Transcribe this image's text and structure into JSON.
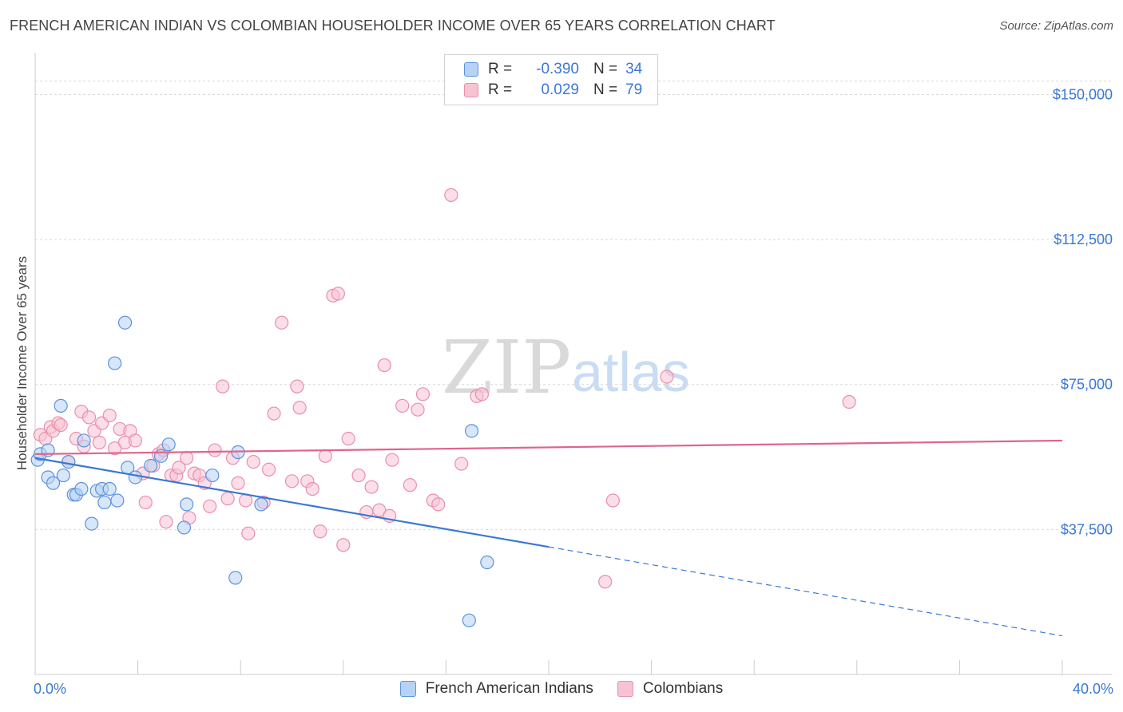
{
  "header": {
    "title": "FRENCH AMERICAN INDIAN VS COLOMBIAN HOUSEHOLDER INCOME OVER 65 YEARS CORRELATION CHART",
    "source": "Source: ZipAtlas.com"
  },
  "stats": {
    "rows": [
      {
        "r_label": "R =",
        "r_value": "-0.390",
        "n_label": "N =",
        "n_value": "34"
      },
      {
        "r_label": "R =",
        "r_value": "0.029",
        "n_label": "N =",
        "n_value": "79"
      }
    ]
  },
  "colors": {
    "blue_fill": "#b7d2f4",
    "blue_stroke": "#5b93dd",
    "blue_line": "#3a78d4",
    "pink_fill": "#f7c3d3",
    "pink_stroke": "#ea8fab",
    "pink_line": "#e0648c",
    "grid": "#d9d9d9",
    "accent_text": "#3a78d4"
  },
  "watermark": {
    "part1": "ZIP",
    "part2": "atlas"
  },
  "chart_data": {
    "type": "scatter",
    "title": "FRENCH AMERICAN INDIAN VS COLOMBIAN HOUSEHOLDER INCOME OVER 65 YEARS CORRELATION CHART",
    "xlabel": "",
    "ylabel": "Householder Income Over 65 years",
    "xlim": [
      0,
      40
    ],
    "ylim": [
      0,
      160000
    ],
    "x_tick_labels": {
      "min": "0.0%",
      "max": "40.0%"
    },
    "y_ticks": [
      {
        "value": 37500,
        "label": "$37,500"
      },
      {
        "value": 75000,
        "label": "$75,000"
      },
      {
        "value": 112500,
        "label": "$112,500"
      },
      {
        "value": 150000,
        "label": "$150,000"
      }
    ],
    "legend_position": "bottom-center",
    "series": [
      {
        "name": "French American Indians",
        "color": "#5b93dd",
        "points": [
          [
            0.1,
            55500
          ],
          [
            0.2,
            57000
          ],
          [
            0.5,
            58000
          ],
          [
            0.5,
            51000
          ],
          [
            0.7,
            49500
          ],
          [
            1.0,
            69500
          ],
          [
            1.1,
            51500
          ],
          [
            1.3,
            55000
          ],
          [
            1.5,
            46500
          ],
          [
            1.6,
            46500
          ],
          [
            1.8,
            48000
          ],
          [
            1.9,
            60500
          ],
          [
            2.2,
            39000
          ],
          [
            2.4,
            47500
          ],
          [
            2.6,
            48000
          ],
          [
            2.7,
            44500
          ],
          [
            2.9,
            48000
          ],
          [
            3.1,
            80500
          ],
          [
            3.2,
            45000
          ],
          [
            3.5,
            91000
          ],
          [
            3.6,
            53500
          ],
          [
            3.9,
            51000
          ],
          [
            4.5,
            54000
          ],
          [
            4.9,
            56500
          ],
          [
            5.2,
            59500
          ],
          [
            5.8,
            38000
          ],
          [
            5.9,
            44000
          ],
          [
            6.9,
            51500
          ],
          [
            7.8,
            25000
          ],
          [
            7.9,
            57500
          ],
          [
            8.8,
            44000
          ],
          [
            17.0,
            63000
          ],
          [
            17.6,
            29000
          ],
          [
            16.9,
            14000
          ]
        ],
        "trend": {
          "x_start": 0,
          "y_start": 56000,
          "x_solid_end": 20,
          "y_solid_end": 33000,
          "x_end": 40,
          "y_end": 10000
        }
      },
      {
        "name": "Colombians",
        "color": "#ea8fab",
        "points": [
          [
            0.2,
            62000
          ],
          [
            0.4,
            61000
          ],
          [
            0.6,
            64000
          ],
          [
            0.7,
            63000
          ],
          [
            0.9,
            65000
          ],
          [
            1.0,
            64500
          ],
          [
            1.3,
            55000
          ],
          [
            1.6,
            61000
          ],
          [
            1.8,
            68000
          ],
          [
            1.9,
            59000
          ],
          [
            2.1,
            66500
          ],
          [
            2.3,
            63000
          ],
          [
            2.5,
            60000
          ],
          [
            2.6,
            65000
          ],
          [
            2.9,
            67000
          ],
          [
            3.1,
            58500
          ],
          [
            3.3,
            63500
          ],
          [
            3.5,
            60000
          ],
          [
            3.7,
            63000
          ],
          [
            3.9,
            60500
          ],
          [
            4.2,
            52000
          ],
          [
            4.3,
            44500
          ],
          [
            4.6,
            54000
          ],
          [
            4.8,
            57000
          ],
          [
            5.0,
            58000
          ],
          [
            5.1,
            39500
          ],
          [
            5.3,
            51500
          ],
          [
            5.5,
            51500
          ],
          [
            5.6,
            53500
          ],
          [
            5.9,
            56000
          ],
          [
            6.0,
            40500
          ],
          [
            6.2,
            52000
          ],
          [
            6.4,
            51500
          ],
          [
            6.6,
            49500
          ],
          [
            6.8,
            43500
          ],
          [
            7.0,
            58000
          ],
          [
            7.3,
            74500
          ],
          [
            7.5,
            45500
          ],
          [
            7.7,
            56000
          ],
          [
            7.9,
            49500
          ],
          [
            8.2,
            45000
          ],
          [
            8.3,
            36500
          ],
          [
            8.5,
            55000
          ],
          [
            8.9,
            44500
          ],
          [
            9.1,
            53000
          ],
          [
            9.3,
            67500
          ],
          [
            9.6,
            91000
          ],
          [
            10.0,
            50000
          ],
          [
            10.2,
            74500
          ],
          [
            10.3,
            69000
          ],
          [
            10.6,
            50000
          ],
          [
            10.8,
            48000
          ],
          [
            11.1,
            37000
          ],
          [
            11.3,
            56500
          ],
          [
            11.6,
            98000
          ],
          [
            11.8,
            98500
          ],
          [
            12.0,
            33500
          ],
          [
            12.2,
            61000
          ],
          [
            12.6,
            51500
          ],
          [
            12.9,
            42000
          ],
          [
            13.1,
            48500
          ],
          [
            13.4,
            42500
          ],
          [
            13.6,
            80000
          ],
          [
            13.8,
            41000
          ],
          [
            13.9,
            55500
          ],
          [
            14.3,
            69500
          ],
          [
            14.6,
            49000
          ],
          [
            14.9,
            68500
          ],
          [
            15.1,
            72500
          ],
          [
            15.5,
            45000
          ],
          [
            15.7,
            44000
          ],
          [
            16.2,
            124000
          ],
          [
            16.6,
            54500
          ],
          [
            17.2,
            72000
          ],
          [
            17.4,
            72500
          ],
          [
            22.2,
            24000
          ],
          [
            22.5,
            45000
          ],
          [
            24.6,
            77000
          ],
          [
            31.7,
            70500
          ]
        ],
        "trend": {
          "x_start": 0,
          "y_start": 57000,
          "x_end": 40,
          "y_end": 60500
        }
      }
    ]
  }
}
